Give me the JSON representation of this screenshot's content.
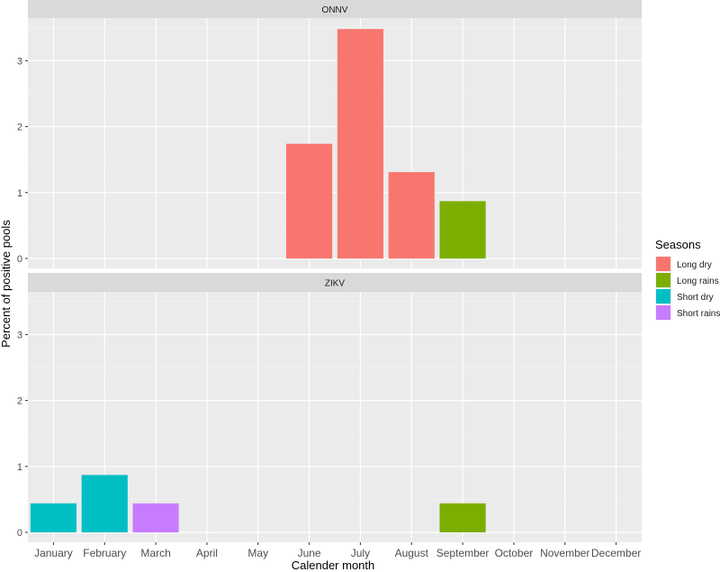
{
  "chart_data": {
    "type": "bar",
    "xlabel": "Calender month",
    "ylabel": "Percent of positive pools",
    "ylim": [
      0,
      3.5
    ],
    "yticks": [
      0,
      1,
      2,
      3
    ],
    "grid": true,
    "categories": [
      "January",
      "February",
      "March",
      "April",
      "May",
      "June",
      "July",
      "August",
      "September",
      "October",
      "November",
      "December"
    ],
    "legend": {
      "title": "Seasons",
      "placement": "right",
      "entries": [
        {
          "name": "Long dry",
          "color": "#F8766D"
        },
        {
          "name": "Long rains",
          "color": "#7CAE00"
        },
        {
          "name": "Short dry",
          "color": "#00BFC4"
        },
        {
          "name": "Short rains",
          "color": "#C77CFF"
        }
      ]
    },
    "panels": [
      {
        "title": "ONNV",
        "bars": [
          {
            "month": "June",
            "value": 1.74,
            "season": "Long dry"
          },
          {
            "month": "July",
            "value": 3.48,
            "season": "Long dry"
          },
          {
            "month": "August",
            "value": 1.31,
            "season": "Long dry"
          },
          {
            "month": "September",
            "value": 0.87,
            "season": "Long rains"
          }
        ]
      },
      {
        "title": "ZIKV",
        "bars": [
          {
            "month": "January",
            "value": 0.44,
            "season": "Short dry"
          },
          {
            "month": "February",
            "value": 0.87,
            "season": "Short dry"
          },
          {
            "month": "March",
            "value": 0.44,
            "season": "Short rains"
          },
          {
            "month": "September",
            "value": 0.44,
            "season": "Long rains"
          }
        ]
      }
    ]
  }
}
